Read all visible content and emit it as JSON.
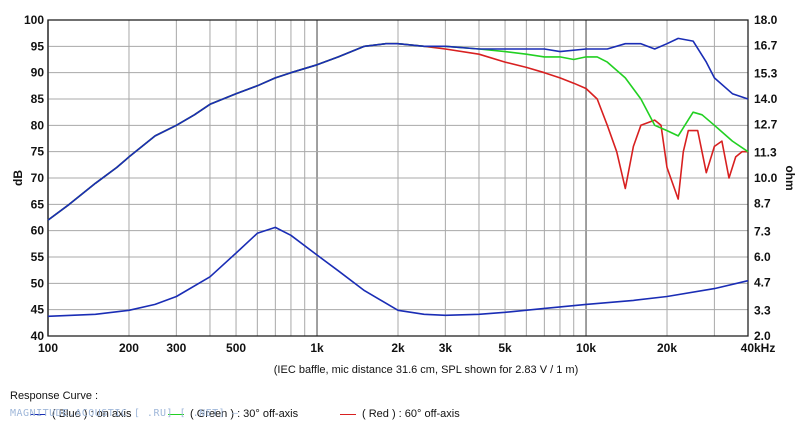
{
  "chart_data": {
    "type": "line",
    "x_scale": "log",
    "xlim": [
      100,
      40000
    ],
    "ylim": [
      40,
      100
    ],
    "y2lim": [
      2.0,
      18.0
    ],
    "grid": true,
    "ylabel": "dB",
    "y2label": "ohm",
    "caption": "(IEC baffle, mic distance 31.6 cm, SPL shown for 2.83 V / 1 m)",
    "x_ticks": [
      {
        "value": 100,
        "label": "100"
      },
      {
        "value": 200,
        "label": "200"
      },
      {
        "value": 300,
        "label": "300"
      },
      {
        "value": 500,
        "label": "500"
      },
      {
        "value": 1000,
        "label": "1k"
      },
      {
        "value": 2000,
        "label": "2k"
      },
      {
        "value": 3000,
        "label": "3k"
      },
      {
        "value": 5000,
        "label": "5k"
      },
      {
        "value": 10000,
        "label": "10k"
      },
      {
        "value": 20000,
        "label": "20k"
      },
      {
        "value": 40000,
        "label": "40kHz"
      }
    ],
    "y_ticks": [
      "40",
      "45",
      "50",
      "55",
      "60",
      "65",
      "70",
      "75",
      "80",
      "85",
      "90",
      "95",
      "100"
    ],
    "y2_ticks": [
      "2.0",
      "3.3",
      "4.7",
      "6.0",
      "7.3",
      "8.7",
      "10.0",
      "11.3",
      "12.7",
      "14.0",
      "15.3",
      "16.7",
      "18.0"
    ],
    "series": [
      {
        "name": "( Blue ) : on axis",
        "color": "#1a2db5",
        "axis": "left",
        "x": [
          100,
          120,
          150,
          180,
          200,
          250,
          300,
          350,
          400,
          500,
          600,
          700,
          800,
          1000,
          1200,
          1500,
          1800,
          2000,
          2500,
          3000,
          4000,
          5000,
          6000,
          7000,
          8000,
          10000,
          12000,
          14000,
          16000,
          18000,
          20000,
          22000,
          25000,
          28000,
          30000,
          35000,
          40000
        ],
        "y": [
          62,
          65,
          69,
          72,
          74,
          78,
          80,
          82,
          84,
          86,
          87.5,
          89,
          90,
          91.5,
          93,
          95,
          95.5,
          95.5,
          95,
          95,
          94.5,
          94.5,
          94.5,
          94.5,
          94,
          94.5,
          94.5,
          95.5,
          95.5,
          94.5,
          95.5,
          96.5,
          96,
          92,
          89,
          86,
          85
        ]
      },
      {
        "name": "( Green ) : 30° off-axis",
        "color": "#22d022",
        "axis": "left",
        "x": [
          100,
          120,
          150,
          180,
          200,
          250,
          300,
          350,
          400,
          500,
          600,
          700,
          800,
          1000,
          1200,
          1500,
          1800,
          2000,
          2500,
          3000,
          4000,
          5000,
          6000,
          7000,
          8000,
          9000,
          10000,
          11000,
          12000,
          14000,
          16000,
          18000,
          20000,
          22000,
          25000,
          27000,
          30000,
          35000,
          40000
        ],
        "y": [
          62,
          65,
          69,
          72,
          74,
          78,
          80,
          82,
          84,
          86,
          87.5,
          89,
          90,
          91.5,
          93,
          95,
          95.5,
          95.5,
          95,
          95,
          94.5,
          94,
          93.5,
          93,
          93,
          92.5,
          93,
          93,
          92,
          89,
          85,
          80,
          79,
          78,
          82.5,
          82,
          80,
          77,
          75
        ]
      },
      {
        "name": "( Red ) : 60° off-axis",
        "color": "#d82020",
        "axis": "left",
        "x": [
          100,
          120,
          150,
          180,
          200,
          250,
          300,
          350,
          400,
          500,
          600,
          700,
          800,
          1000,
          1200,
          1500,
          1800,
          2000,
          2500,
          3000,
          4000,
          5000,
          6000,
          7000,
          8000,
          9000,
          10000,
          11000,
          12000,
          13000,
          14000,
          15000,
          16000,
          18000,
          19000,
          20000,
          22000,
          23000,
          24000,
          26000,
          28000,
          30000,
          32000,
          34000,
          36000,
          38000,
          40000
        ],
        "y": [
          62,
          65,
          69,
          72,
          74,
          78,
          80,
          82,
          84,
          86,
          87.5,
          89,
          90,
          91.5,
          93,
          95,
          95.5,
          95.5,
          95,
          94.5,
          93.5,
          92,
          91,
          90,
          89,
          88,
          87,
          85,
          80,
          75,
          68,
          76,
          80,
          81,
          80,
          72,
          66,
          75,
          79,
          79,
          71,
          76,
          77,
          70,
          74,
          75,
          75
        ]
      },
      {
        "name": "impedance",
        "color": "#1a2db5",
        "axis": "right",
        "x": [
          100,
          150,
          200,
          250,
          300,
          400,
          500,
          600,
          700,
          800,
          1000,
          1200,
          1500,
          2000,
          2500,
          3000,
          4000,
          5000,
          7000,
          10000,
          15000,
          20000,
          30000,
          40000
        ],
        "y": [
          3.0,
          3.1,
          3.3,
          3.6,
          4.0,
          5.0,
          6.2,
          7.2,
          7.5,
          7.1,
          6.1,
          5.3,
          4.3,
          3.3,
          3.1,
          3.05,
          3.1,
          3.2,
          3.4,
          3.6,
          3.8,
          4.0,
          4.4,
          4.8
        ]
      }
    ],
    "legend_title": "Response Curve :",
    "legend_labels": [
      "( Blue ) : on axis",
      "( Green ) : 30° off-axis",
      "( Red ) : 60° off-axis"
    ]
  },
  "watermark": "MAGNITUDE.ACOUSTIC [ .RU] [ .NET] —"
}
